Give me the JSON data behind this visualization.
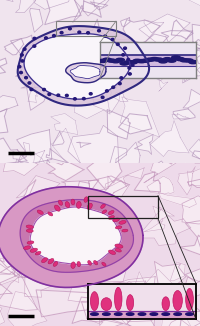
{
  "fig_width": 2.0,
  "fig_height": 3.26,
  "dpi": 100,
  "top_panel": {
    "bg_color": "#f0e4ee",
    "alveoli_edge_color": "#b090b8",
    "alveoli_fill": "#f8f0f6",
    "airway_lumen": "#f8f4fa",
    "airway_wall_outer": "#4030a0",
    "airway_wall_inner": "#8060b0",
    "inset_bg": "#ede4f0",
    "inset_border": "#808080",
    "sel_box_color": "#909090",
    "scalebar_color": "#000000"
  },
  "bottom_panel": {
    "bg_color": "#eedaea",
    "alveoli_edge_color": "#c090b8",
    "alveoli_fill": "#f8eef4",
    "airway_lumen": "#faf4f8",
    "airway_wall_outer": "#a030a0",
    "airway_wall_thick": "#d060a0",
    "goblet_color": "#e02070",
    "inset_bg": "#f0dcea",
    "inset_border": "#000000",
    "sel_box_color": "#303030",
    "scalebar_color": "#000000"
  }
}
